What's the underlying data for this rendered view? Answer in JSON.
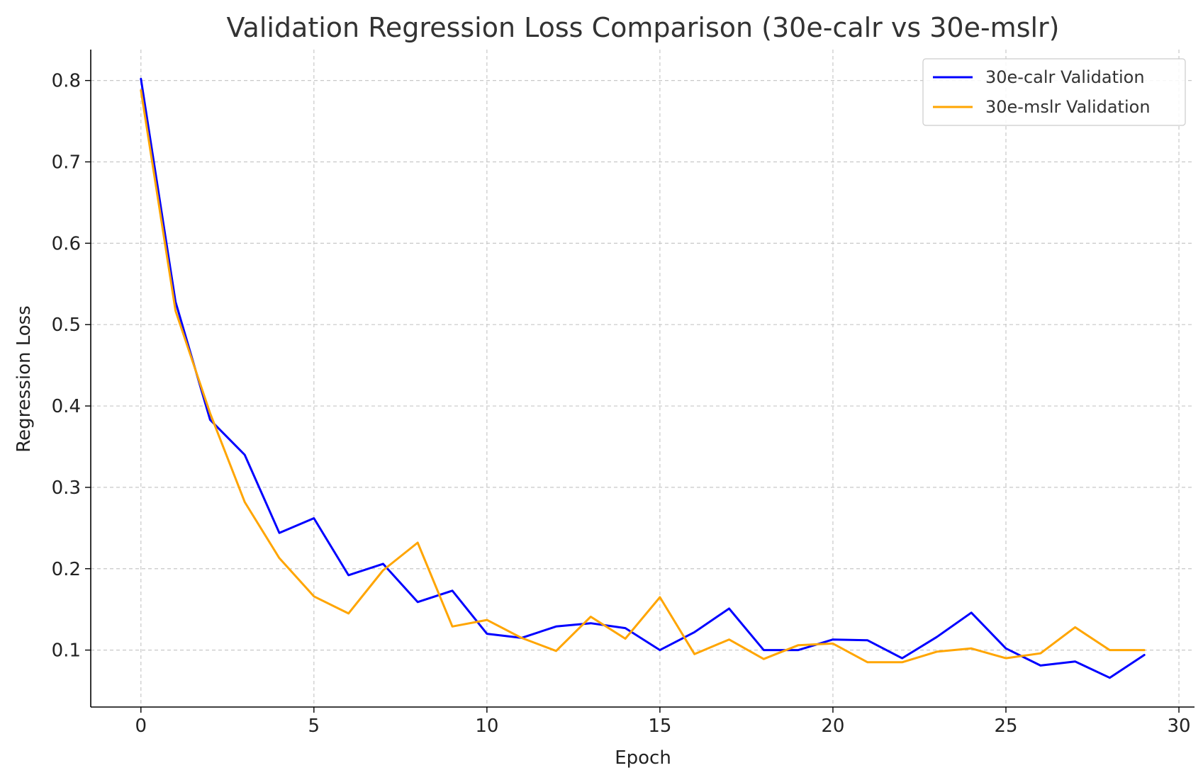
{
  "chart_data": {
    "type": "line",
    "title": "Validation Regression Loss Comparison (30e-calr vs 30e-mslr)",
    "xlabel": "Epoch",
    "ylabel": "Regression Loss",
    "xlim": [
      -1.45,
      30.45
    ],
    "ylim": [
      0.03,
      0.838
    ],
    "xticks": [
      0,
      5,
      10,
      15,
      20,
      25,
      30
    ],
    "yticks": [
      0.1,
      0.2,
      0.3,
      0.4,
      0.5,
      0.6,
      0.7,
      0.8
    ],
    "xtick_labels": [
      "0",
      "5",
      "10",
      "15",
      "20",
      "25",
      "30"
    ],
    "ytick_labels": [
      "0.1",
      "0.2",
      "0.3",
      "0.4",
      "0.5",
      "0.6",
      "0.7",
      "0.8"
    ],
    "grid": true,
    "legend_position": "top-right",
    "x": [
      0,
      1,
      2,
      3,
      4,
      5,
      6,
      7,
      8,
      9,
      10,
      11,
      12,
      13,
      14,
      15,
      16,
      17,
      18,
      19,
      20,
      21,
      22,
      23,
      24,
      25,
      26,
      27,
      28,
      29
    ],
    "series": [
      {
        "name": "30e-calr Validation",
        "color": "#0000ff",
        "values": [
          0.802,
          0.528,
          0.383,
          0.34,
          0.244,
          0.262,
          0.192,
          0.206,
          0.159,
          0.173,
          0.12,
          0.115,
          0.129,
          0.133,
          0.127,
          0.1,
          0.122,
          0.151,
          0.1,
          0.1,
          0.113,
          0.112,
          0.09,
          0.116,
          0.146,
          0.102,
          0.081,
          0.086,
          0.066,
          0.094
        ]
      },
      {
        "name": "30e-mslr Validation",
        "color": "#ffa500",
        "values": [
          0.788,
          0.517,
          0.391,
          0.282,
          0.213,
          0.166,
          0.145,
          0.198,
          0.232,
          0.129,
          0.137,
          0.115,
          0.099,
          0.141,
          0.114,
          0.165,
          0.095,
          0.113,
          0.089,
          0.106,
          0.108,
          0.085,
          0.085,
          0.098,
          0.102,
          0.09,
          0.096,
          0.128,
          0.1,
          0.1
        ]
      }
    ]
  }
}
